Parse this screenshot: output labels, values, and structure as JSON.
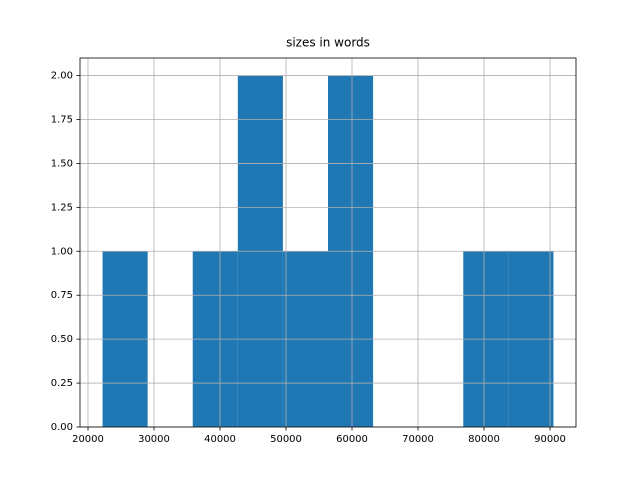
{
  "chart_data": {
    "type": "histogram",
    "title": "sizes in words",
    "bins": [
      22204,
      29036,
      35868,
      42700,
      49532,
      56364,
      63196,
      70028,
      76860,
      83692,
      90524
    ],
    "values": [
      1,
      0,
      1,
      2,
      1,
      2,
      0,
      0,
      1,
      1
    ],
    "color": "#1f77b4",
    "xlim": [
      18788,
      93939
    ],
    "xticks": [
      20000,
      30000,
      40000,
      50000,
      60000,
      70000,
      80000,
      90000
    ],
    "ylim": [
      0,
      2.1
    ],
    "yticks": [
      {
        "value": 0,
        "label": "0.00"
      },
      {
        "value": 0.25,
        "label": "0.25"
      },
      {
        "value": 0.5,
        "label": "0.50"
      },
      {
        "value": 0.75,
        "label": "0.75"
      },
      {
        "value": 1,
        "label": "1.00"
      },
      {
        "value": 1.25,
        "label": "1.25"
      },
      {
        "value": 1.5,
        "label": "1.50"
      },
      {
        "value": 1.75,
        "label": "1.75"
      },
      {
        "value": 2,
        "label": "2.00"
      }
    ],
    "grid": true
  }
}
